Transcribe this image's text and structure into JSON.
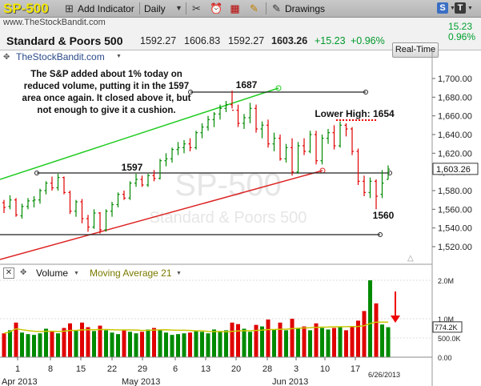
{
  "site": {
    "domain": "www.TheStockBandit.com",
    "watermark": "TheStockBandit.com"
  },
  "toolbar": {
    "symbol": "SP-500",
    "add_indicator": "Add Indicator",
    "interval": "Daily",
    "drawings": "Drawings",
    "icons": [
      "plus-icon",
      "dropdown-icon",
      "wrench-scissors-icon",
      "alarm-icon",
      "calendar-icon",
      "note-icon",
      "share-icon",
      "twitter-icon",
      "facebook-icon"
    ]
  },
  "quote": {
    "name": "Standard & Poors 500",
    "open": "1592.27",
    "high": "1606.83",
    "low": "1592.27",
    "close": "1603.26",
    "change": "+15.23",
    "change_pct": "+0.96%",
    "right_change": "15.23",
    "right_pct": "0.96%",
    "realtime_label": "Real-Time"
  },
  "annotation": {
    "text": "The S&P added about 1% today on reduced volume, putting it in the 1597 area once again. It closed above it, but not enough to give it a cushion.",
    "lbl_1687": "1687",
    "lbl_1597": "1597",
    "lbl_lower_high": "Lower High: 1654",
    "lbl_1560": "1560"
  },
  "chart_watermark": {
    "big": "SP-500",
    "small": "Standard & Poors 500"
  },
  "colors": {
    "up": "#008a00",
    "down": "#e00000",
    "uptrend": "#22cc22",
    "support": "#dd2222",
    "accent_yellow": "#f2e600"
  },
  "volume_panel": {
    "title": "Volume",
    "ma_label": "Moving Average 21",
    "ma_value_label": "774.2K"
  },
  "chart_data": {
    "type": "candlestick",
    "y_axis": {
      "ticks": [
        "1,700.00",
        "1,680.00",
        "1,660.00",
        "1,640.00",
        "1,620.00",
        "1,600.00",
        "1,580.00",
        "1,560.00",
        "1,540.00",
        "1,520.00"
      ],
      "ylim": [
        1505,
        1712
      ],
      "last_label": "1,603.26"
    },
    "x_axis": {
      "ticks": [
        "1",
        "8",
        "15",
        "22",
        "29",
        "6",
        "13",
        "20",
        "28",
        "3",
        "10",
        "17"
      ],
      "month_labels": [
        "Apr 2013",
        "May 2013",
        "Jun 2013"
      ],
      "last_date_label": "6/26/2013"
    },
    "bars": [
      [
        1567,
        1570,
        1556,
        1562
      ],
      [
        1563,
        1575,
        1560,
        1570
      ],
      [
        1570,
        1572,
        1552,
        1554
      ],
      [
        1553,
        1566,
        1550,
        1563
      ],
      [
        1563,
        1572,
        1560,
        1569
      ],
      [
        1569,
        1574,
        1562,
        1570
      ],
      [
        1570,
        1582,
        1566,
        1580
      ],
      [
        1580,
        1590,
        1576,
        1588
      ],
      [
        1588,
        1595,
        1580,
        1583
      ],
      [
        1583,
        1598,
        1580,
        1594
      ],
      [
        1594,
        1595,
        1576,
        1578
      ],
      [
        1578,
        1580,
        1555,
        1558
      ],
      [
        1558,
        1570,
        1552,
        1568
      ],
      [
        1568,
        1571,
        1545,
        1550
      ],
      [
        1550,
        1554,
        1536,
        1541
      ],
      [
        1541,
        1560,
        1539,
        1556
      ],
      [
        1556,
        1557,
        1534,
        1538
      ],
      [
        1538,
        1560,
        1536,
        1558
      ],
      [
        1558,
        1568,
        1552,
        1565
      ],
      [
        1565,
        1578,
        1562,
        1576
      ],
      [
        1576,
        1580,
        1570,
        1572
      ],
      [
        1572,
        1590,
        1570,
        1588
      ],
      [
        1588,
        1598,
        1584,
        1592
      ],
      [
        1592,
        1596,
        1584,
        1586
      ],
      [
        1586,
        1598,
        1584,
        1596
      ],
      [
        1596,
        1602,
        1590,
        1593
      ],
      [
        1593,
        1614,
        1592,
        1612
      ],
      [
        1612,
        1620,
        1606,
        1614
      ],
      [
        1614,
        1626,
        1610,
        1624
      ],
      [
        1624,
        1632,
        1618,
        1626
      ],
      [
        1626,
        1634,
        1620,
        1630
      ],
      [
        1630,
        1636,
        1622,
        1626
      ],
      [
        1626,
        1644,
        1624,
        1642
      ],
      [
        1642,
        1652,
        1636,
        1648
      ],
      [
        1648,
        1660,
        1644,
        1656
      ],
      [
        1656,
        1664,
        1648,
        1662
      ],
      [
        1662,
        1672,
        1656,
        1668
      ],
      [
        1668,
        1676,
        1664,
        1672
      ],
      [
        1672,
        1687,
        1668,
        1666
      ],
      [
        1666,
        1672,
        1648,
        1652
      ],
      [
        1652,
        1662,
        1646,
        1658
      ],
      [
        1658,
        1674,
        1652,
        1668
      ],
      [
        1668,
        1672,
        1642,
        1646
      ],
      [
        1646,
        1654,
        1636,
        1650
      ],
      [
        1650,
        1656,
        1626,
        1630
      ],
      [
        1630,
        1642,
        1622,
        1636
      ],
      [
        1636,
        1640,
        1612,
        1614
      ],
      [
        1614,
        1630,
        1610,
        1626
      ],
      [
        1626,
        1636,
        1596,
        1600
      ],
      [
        1600,
        1632,
        1598,
        1628
      ],
      [
        1628,
        1636,
        1618,
        1622
      ],
      [
        1622,
        1644,
        1620,
        1640
      ],
      [
        1640,
        1644,
        1608,
        1612
      ],
      [
        1612,
        1640,
        1608,
        1636
      ],
      [
        1636,
        1646,
        1630,
        1642
      ],
      [
        1642,
        1650,
        1624,
        1628
      ],
      [
        1628,
        1654,
        1626,
        1650
      ],
      [
        1650,
        1652,
        1638,
        1646
      ],
      [
        1646,
        1648,
        1618,
        1622
      ],
      [
        1622,
        1625,
        1586,
        1590
      ],
      [
        1590,
        1596,
        1574,
        1578
      ],
      [
        1578,
        1594,
        1572,
        1590
      ],
      [
        1590,
        1592,
        1560,
        1574
      ],
      [
        1576,
        1602,
        1572,
        1588
      ],
      [
        1592,
        1607,
        1592,
        1603
      ]
    ],
    "volume_ticks": [
      "2.0M",
      "1.0M",
      "500.0K",
      "0.00"
    ],
    "volume": [
      620,
      700,
      900,
      640,
      600,
      580,
      620,
      740,
      680,
      620,
      760,
      880,
      700,
      900,
      780,
      680,
      820,
      700,
      640,
      600,
      700,
      660,
      620,
      660,
      720,
      760,
      700,
      640,
      580,
      600,
      620,
      640,
      680,
      660,
      620,
      720,
      680,
      700,
      900,
      860,
      740,
      660,
      840,
      800,
      980,
      720,
      900,
      700,
      1000,
      760,
      800,
      700,
      880,
      760,
      720,
      760,
      780,
      700,
      800,
      950,
      1200,
      2000,
      1400,
      850,
      780
    ]
  }
}
